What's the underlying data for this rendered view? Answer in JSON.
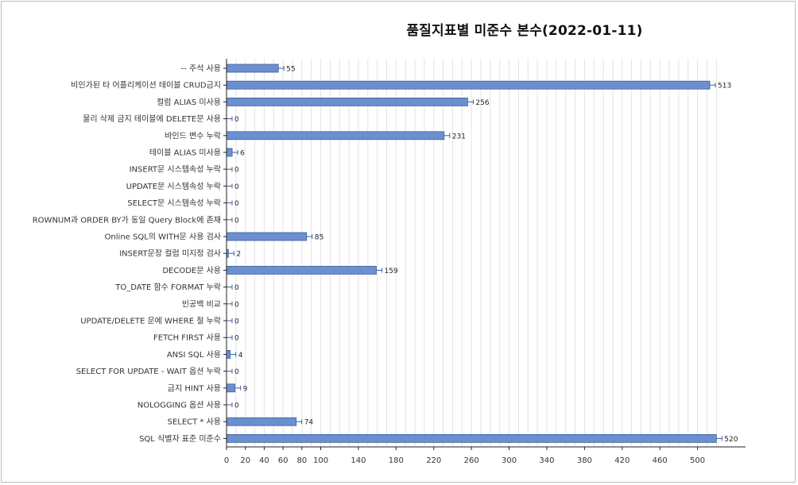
{
  "chart_data": {
    "type": "bar",
    "orientation": "horizontal",
    "title": "품질지표별 미준수 본수(2022-01-11)",
    "categories": [
      "-- 주석 사용",
      "비인가된 타 어플리케이션 테이블 CRUD금지",
      "컬럼 ALIAS 미사용",
      "물리 삭제 금지 테이블에 DELETE문 사용",
      "바인드 변수 누락",
      "테이블 ALIAS 미사용",
      "INSERT문 시스템속성 누락",
      "UPDATE문 시스템속성 누락",
      "SELECT문 시스템속성 누락",
      "ROWNUM과 ORDER BY가 동일 Query Block에 존재",
      "Online SQL의 WITH문 사용 검사",
      "INSERT문장 컬럼 미지정 검사",
      "DECODE문 사용",
      "TO_DATE 함수 FORMAT 누락",
      "빈공백 비교",
      "UPDATE/DELETE 문에 WHERE 절 누락",
      "FETCH FIRST 사용",
      "ANSI SQL 사용",
      "SELECT FOR UPDATE - WAIT 옵션 누락",
      "금지 HINT 사용",
      "NOLOGGING 옵션 사용",
      "SELECT * 사용",
      "SQL 식별자 표준 미준수"
    ],
    "values": [
      55,
      513,
      256,
      0,
      231,
      6,
      0,
      0,
      0,
      0,
      85,
      2,
      159,
      0,
      0,
      0,
      0,
      4,
      0,
      9,
      0,
      74,
      520
    ],
    "xlim": [
      0,
      550
    ],
    "xticks": [
      0,
      20,
      40,
      60,
      80,
      100,
      140,
      180,
      220,
      260,
      300,
      340,
      380,
      420,
      460,
      500
    ],
    "grid": true,
    "bar_color": "#6b8fcf"
  }
}
